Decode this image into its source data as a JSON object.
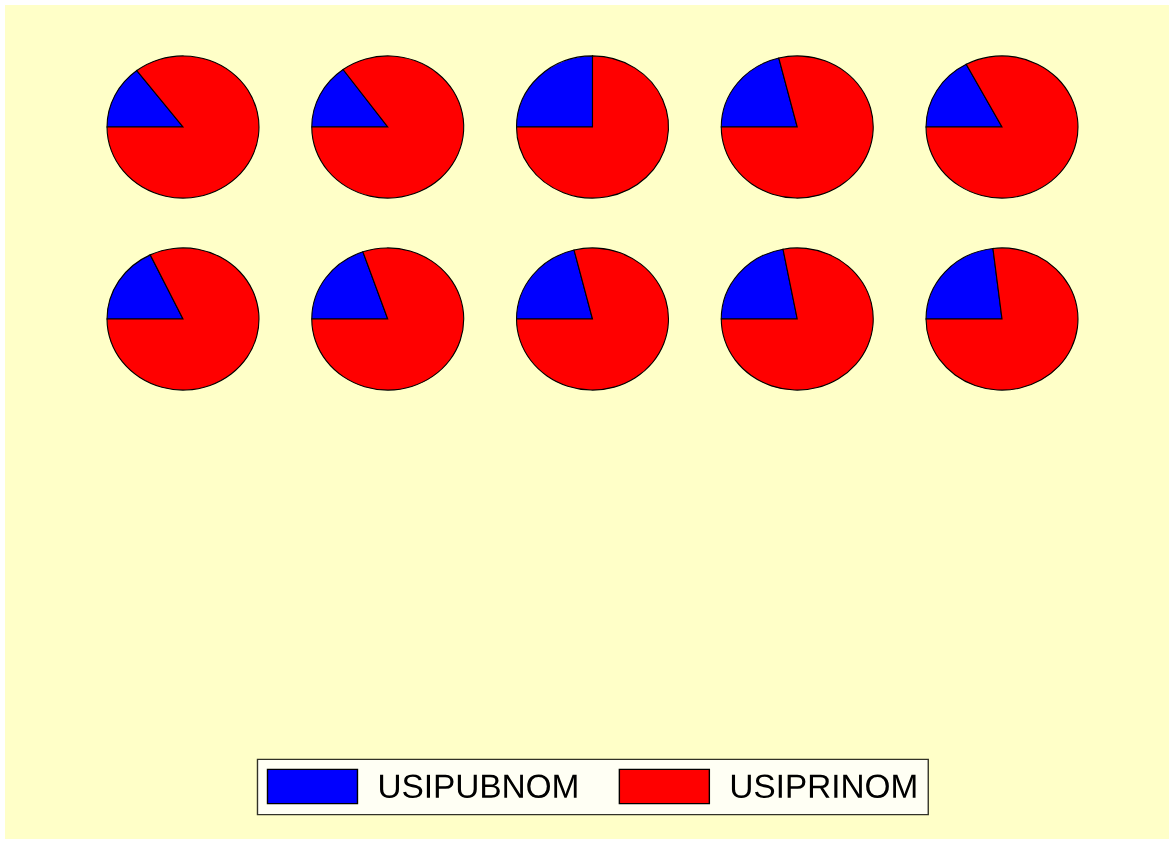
{
  "chart_data": [
    {
      "type": "pie",
      "categories": [
        "USIPUBNOM",
        "USIPRINOM"
      ],
      "values": [
        14.6,
        85.4
      ],
      "colors": [
        "#0000ff",
        "#ff0000"
      ],
      "legend": "bottom"
    },
    {
      "type": "pie",
      "categories": [
        null,
        null
      ],
      "values": [
        15.0,
        85.0
      ],
      "colors": [
        "#0000ff",
        "#ff0000"
      ]
    },
    {
      "type": "pie",
      "categories": [
        null,
        null
      ],
      "values": [
        25.0,
        75.0
      ],
      "colors": [
        "#0000ff",
        "#ff0000"
      ]
    },
    {
      "type": "pie",
      "categories": [
        null,
        null
      ],
      "values": [
        21.1,
        78.9
      ],
      "colors": [
        "#0000ff",
        "#ff0000"
      ]
    },
    {
      "type": "pie",
      "categories": [
        null,
        null
      ],
      "values": [
        17.2,
        82.8
      ],
      "colors": [
        "#0000ff",
        "#ff0000"
      ]
    },
    {
      "type": "pie",
      "categories": [
        null,
        null
      ],
      "values": [
        17.9,
        82.1
      ],
      "colors": [
        "#0000ff",
        "#ff0000"
      ]
    },
    {
      "type": "pie",
      "categories": [
        null,
        null
      ],
      "values": [
        19.7,
        80.3
      ],
      "colors": [
        "#0000ff",
        "#ff0000"
      ]
    },
    {
      "type": "pie",
      "categories": [
        null,
        null
      ],
      "values": [
        21.1,
        78.9
      ],
      "colors": [
        "#0000ff",
        "#ff0000"
      ]
    },
    {
      "type": "pie",
      "categories": [
        null,
        null
      ],
      "values": [
        22.0,
        78.0
      ],
      "colors": [
        "#0000ff",
        "#ff0000"
      ]
    },
    {
      "type": "pie",
      "categories": [
        null,
        null
      ],
      "values": [
        23.1,
        76.9
      ],
      "colors": [
        "#0000ff",
        "#ff0000"
      ]
    }
  ]
}
